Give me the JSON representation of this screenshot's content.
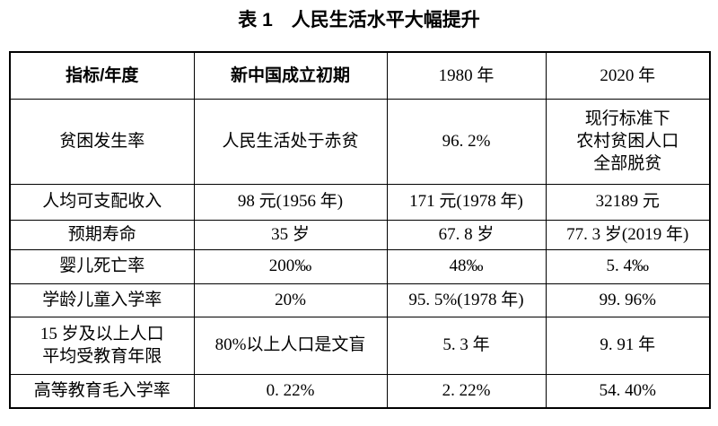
{
  "title": "表 1　人民生活水平大幅提升",
  "colors": {
    "background": "#ffffff",
    "border": "#000000",
    "text": "#000000"
  },
  "table": {
    "headers": [
      "指标/年度",
      "新中国成立初期",
      "1980 年",
      "2020 年"
    ],
    "rows": [
      {
        "cells": [
          "贫困发生率",
          "人民生活处于赤贫",
          "96. 2%",
          "现行标准下\n农村贫困人口\n全部脱贫"
        ]
      },
      {
        "cells": [
          "人均可支配收入",
          "98 元(1956 年)",
          "171 元(1978 年)",
          "32189 元"
        ]
      },
      {
        "cells": [
          "预期寿命",
          "35 岁",
          "67. 8 岁",
          "77. 3 岁(2019 年)"
        ]
      },
      {
        "cells": [
          "婴儿死亡率",
          "200‰",
          "48‰",
          "5. 4‰"
        ]
      },
      {
        "cells": [
          "学龄儿童入学率",
          "20%",
          "95. 5%(1978 年)",
          "99. 96%"
        ]
      },
      {
        "cells": [
          "15 岁及以上人口\n平均受教育年限",
          "80%以上人口是文盲",
          "5. 3 年",
          "9. 91 年"
        ]
      },
      {
        "cells": [
          "高等教育毛入学率",
          "0. 22%",
          "2. 22%",
          "54. 40%"
        ]
      }
    ]
  },
  "chart_data": {
    "type": "table",
    "title": "表 1　人民生活水平大幅提升",
    "columns": [
      "指标/年度",
      "新中国成立初期",
      "1980 年",
      "2020 年"
    ],
    "rows": [
      [
        "贫困发生率",
        "人民生活处于赤贫",
        "96.2%",
        "现行标准下农村贫困人口全部脱贫"
      ],
      [
        "人均可支配收入",
        "98 元(1956 年)",
        "171 元(1978 年)",
        "32189 元"
      ],
      [
        "预期寿命",
        "35 岁",
        "67.8 岁",
        "77.3 岁(2019 年)"
      ],
      [
        "婴儿死亡率",
        "200‰",
        "48‰",
        "5.4‰"
      ],
      [
        "学龄儿童入学率",
        "20%",
        "95.5%(1978 年)",
        "99.96%"
      ],
      [
        "15 岁及以上人口平均受教育年限",
        "80%以上人口是文盲",
        "5.3 年",
        "9.91 年"
      ],
      [
        "高等教育毛入学率",
        "0.22%",
        "2.22%",
        "54.40%"
      ]
    ]
  }
}
